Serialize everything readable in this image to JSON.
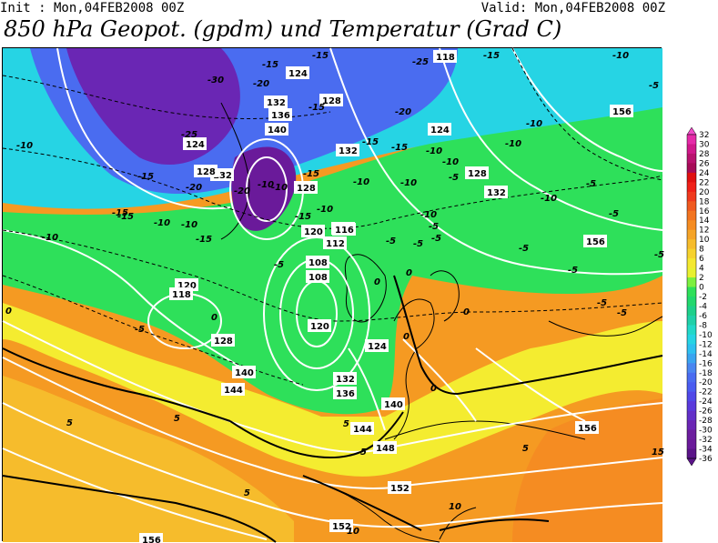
{
  "header": {
    "init_text": "Init : Mon,04FEB2008 00Z",
    "valid_text": "Valid: Mon,04FEB2008 00Z",
    "title": "850 hPa Geopot. (gpdm) und Temperatur (Grad C)"
  },
  "colors": {
    "deep_violet": "#6a1a9a",
    "blue": "#4a5cf0",
    "cyan": "#2ed0f0",
    "green": "#2ee05a",
    "yellow": "#f4ec30",
    "orange": "#f59a22",
    "contour_white": "#ffffff",
    "contour_black": "#000000"
  },
  "legend": {
    "labels": [
      "32",
      "30",
      "28",
      "26",
      "24",
      "22",
      "20",
      "18",
      "16",
      "14",
      "12",
      "10",
      "8",
      "6",
      "4",
      "2",
      "0",
      "-2",
      "-4",
      "-6",
      "-8",
      "-10",
      "-12",
      "-14",
      "-16",
      "-18",
      "-20",
      "-22",
      "-24",
      "-26",
      "-28",
      "-30",
      "-32",
      "-34",
      "-36"
    ],
    "colors": [
      "#f04ac8",
      "#e52aa8",
      "#d0188a",
      "#b8126e",
      "#a60c58",
      "#e01010",
      "#f02018",
      "#f03a1e",
      "#f05a20",
      "#f27420",
      "#f58c22",
      "#f5a428",
      "#f6bc2c",
      "#f6d22e",
      "#f4e830",
      "#e8f030",
      "#7cf040",
      "#2ee05a",
      "#22d86e",
      "#1ed08a",
      "#20d0a8",
      "#22d8c8",
      "#26d4e4",
      "#2ec0f0",
      "#3aa4f0",
      "#4a86f0",
      "#4a6cf0",
      "#4a5cf0",
      "#5048e8",
      "#5a3adc",
      "#6230c8",
      "#6a26b4",
      "#6c1e9e",
      "#6a1a9a",
      "#5a1488"
    ]
  },
  "geopotential_labels": [
    "156",
    "118",
    "124",
    "132",
    "136",
    "140",
    "128",
    "124",
    "132",
    "128",
    "132",
    "128",
    "118",
    "120",
    "116",
    "112",
    "108",
    "108",
    "132",
    "128",
    "124",
    "120",
    "118",
    "120",
    "128",
    "124",
    "140",
    "144",
    "128",
    "124",
    "132",
    "136",
    "140",
    "144",
    "148",
    "152",
    "156",
    "152",
    "156",
    "156",
    "156",
    "120"
  ],
  "temperature_labels": [
    "-30",
    "-25",
    "-15",
    "-25",
    "-10",
    "-15",
    "-15",
    "-20",
    "-25",
    "-20",
    "-20",
    "-10",
    "-15",
    "-15",
    "-20",
    "-20",
    "-25",
    "-15",
    "-15",
    "-10",
    "-10",
    "-10",
    "-10",
    "-15",
    "-10",
    "-10",
    "-15",
    "-5",
    "-5",
    "-10",
    "-5",
    "-15",
    "-10",
    "-10",
    "-5",
    "-10",
    "-5",
    "-5",
    "-5",
    "-5",
    "-5",
    "-10",
    "-5",
    "-5",
    "-5",
    "-5",
    "-15",
    "-10",
    "-15",
    "-15",
    "-10",
    "-10",
    "-5",
    "0",
    "0",
    "0",
    "0",
    "0",
    "0",
    "0",
    "5",
    "5",
    "5",
    "5",
    "5",
    "5",
    "10",
    "10",
    "10",
    "15"
  ]
}
